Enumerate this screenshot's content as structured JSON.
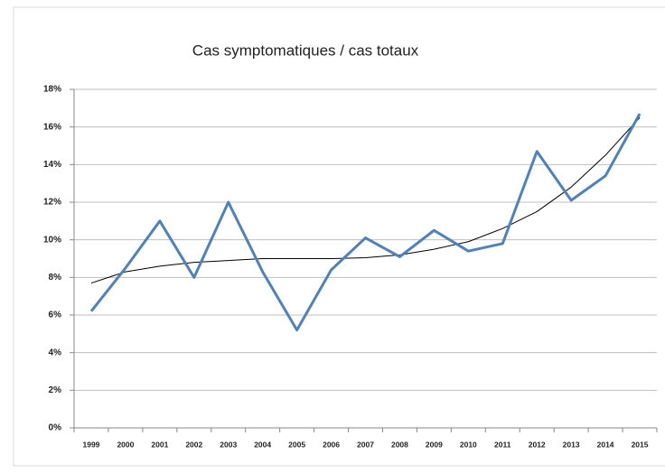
{
  "chart_data": {
    "type": "line",
    "title": "Cas symptomatiques / cas  totaux",
    "categories": [
      "1999",
      "2000",
      "2001",
      "2002",
      "2003",
      "2004",
      "2005",
      "2006",
      "2007",
      "2008",
      "2009",
      "2010",
      "2011",
      "2012",
      "2013",
      "2014",
      "2015"
    ],
    "series": [
      {
        "color": "#4f81bd",
        "values": [
          6.2,
          8.5,
          11.0,
          8.0,
          12.0,
          8.3,
          5.2,
          8.4,
          10.1,
          9.1,
          10.5,
          9.4,
          9.8,
          14.7,
          12.1,
          13.4,
          16.7
        ]
      },
      {
        "color": "#000000",
        "values": [
          7.7,
          8.3,
          8.6,
          8.8,
          8.9,
          9.0,
          9.0,
          9.0,
          9.05,
          9.2,
          9.5,
          9.9,
          10.6,
          11.5,
          12.8,
          14.5,
          16.5
        ]
      }
    ],
    "ylim": [
      0,
      18
    ],
    "yticks": [
      {
        "value": 0,
        "label": "0%"
      },
      {
        "value": 2,
        "label": "2%"
      },
      {
        "value": 4,
        "label": "4%"
      },
      {
        "value": 6,
        "label": "6%"
      },
      {
        "value": 8,
        "label": "8%"
      },
      {
        "value": 10,
        "label": "10%"
      },
      {
        "value": 12,
        "label": "12%"
      },
      {
        "value": 14,
        "label": "14%"
      },
      {
        "value": 16,
        "label": "16%"
      },
      {
        "value": 18,
        "label": "18%"
      }
    ],
    "grid": true
  }
}
